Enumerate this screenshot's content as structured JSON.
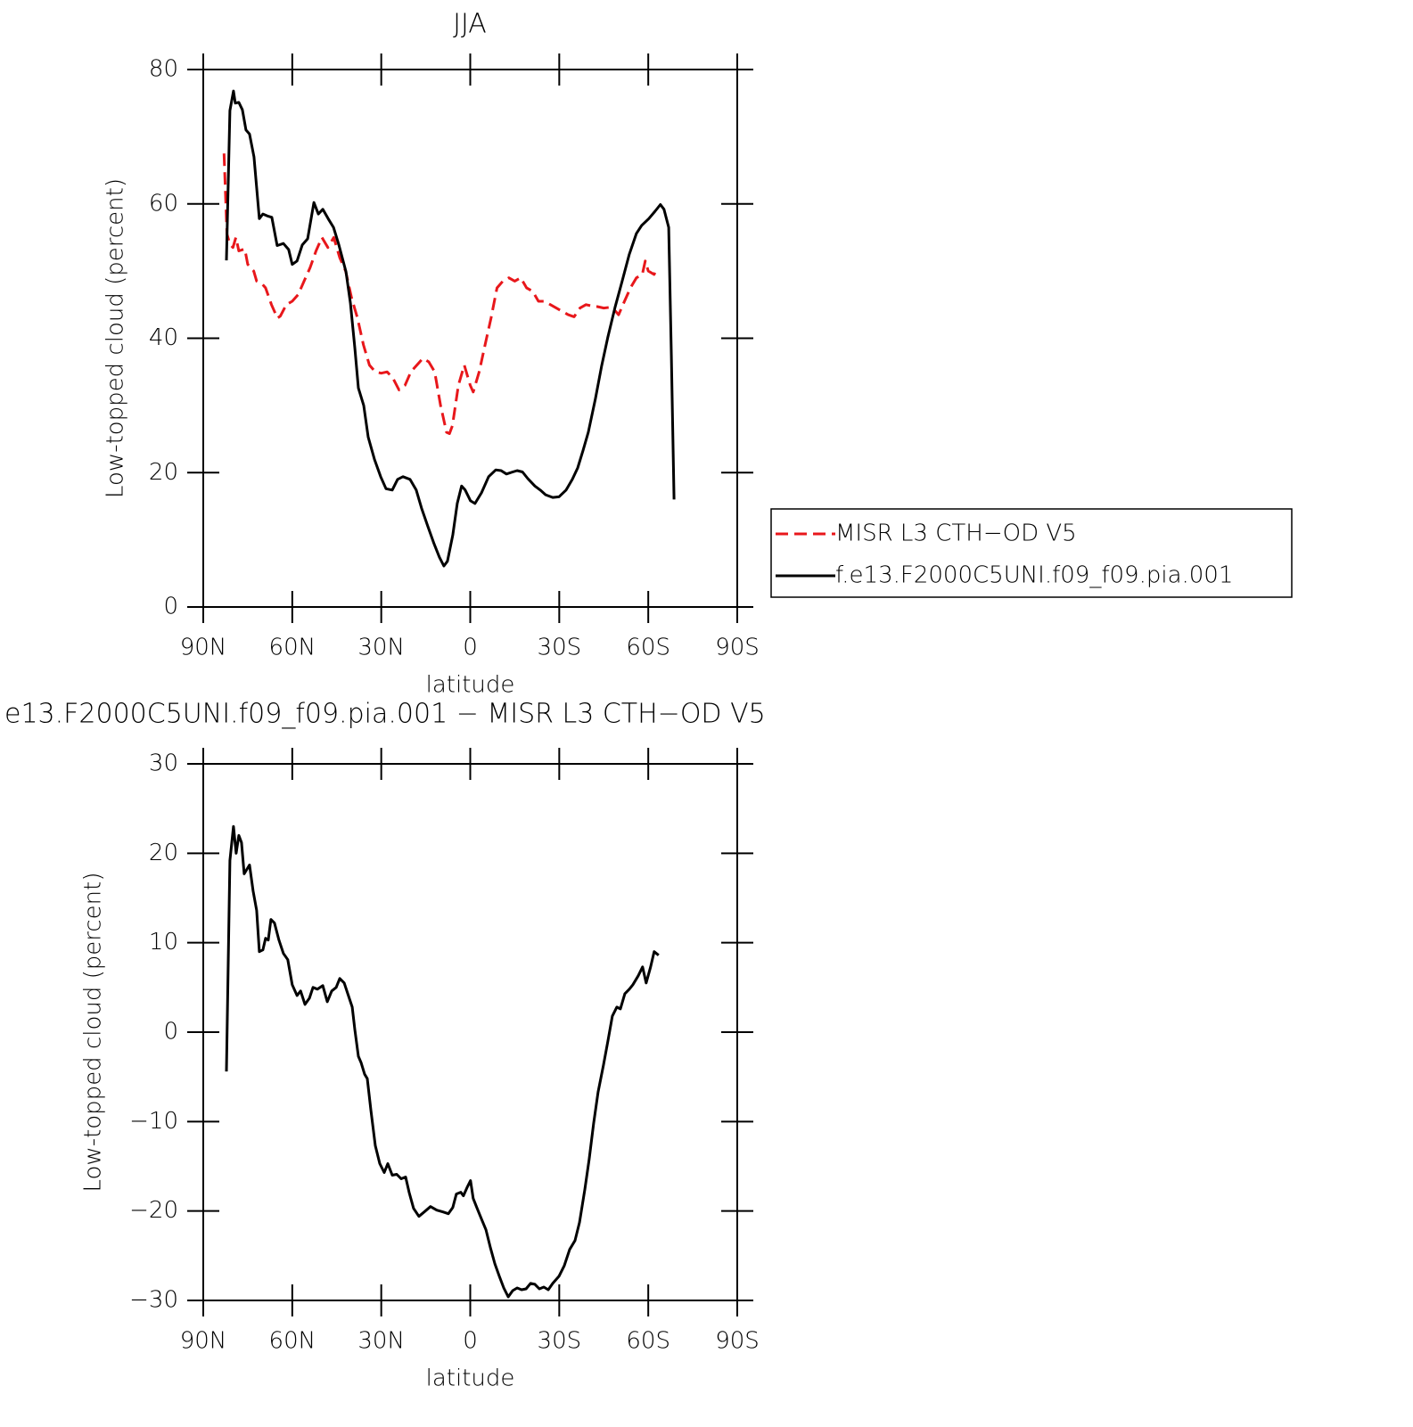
{
  "chart_data": [
    {
      "type": "line",
      "title": "JJA",
      "xlabel": "latitude",
      "ylabel": "Low-topped cloud (percent)",
      "xlim": [
        90,
        -90
      ],
      "ylim": [
        0,
        80
      ],
      "xticks": [
        {
          "value": 90,
          "label": "90N"
        },
        {
          "value": 60,
          "label": "60N"
        },
        {
          "value": 30,
          "label": "30N"
        },
        0,
        {
          "value": -30,
          "label": "30S"
        },
        {
          "value": -60,
          "label": "60S"
        },
        {
          "value": -90,
          "label": "90S"
        }
      ],
      "yticks": [
        0,
        20,
        40,
        60,
        80
      ],
      "legend": "right",
      "series": [
        {
          "name": "MISR L3 CTH−OD V5",
          "color": "#e8171b",
          "dashed": true,
          "x": [
            83,
            82,
            81,
            80,
            79,
            78,
            76,
            75,
            73,
            72,
            70,
            69,
            67,
            65,
            64,
            62,
            60,
            58,
            56,
            54,
            52,
            50,
            48,
            46,
            44,
            42,
            40,
            38,
            36,
            34,
            32,
            30,
            28,
            26,
            24,
            22,
            20,
            18,
            16,
            14,
            12,
            10,
            8,
            7,
            6,
            4,
            2,
            0,
            -1,
            -3,
            -5,
            -7,
            -9,
            -11,
            -13,
            -15,
            -17,
            -19,
            -21,
            -23,
            -25,
            -27,
            -29,
            -31,
            -33,
            -35,
            -37,
            -39,
            -41,
            -43,
            -45,
            -47,
            -49,
            -50,
            -52,
            -54,
            -56,
            -58,
            -59,
            -60,
            -62,
            -63
          ],
          "values": [
            67.5,
            55.5,
            54,
            53.5,
            55,
            53,
            53.3,
            51,
            50,
            48.5,
            48,
            47.5,
            45,
            43,
            43.3,
            45,
            45.5,
            46.5,
            48.5,
            50.5,
            53,
            55,
            53.5,
            55,
            52,
            50,
            46,
            43,
            39,
            36,
            35,
            34.8,
            35,
            34,
            32.3,
            33,
            35,
            36,
            37,
            36.5,
            35,
            30,
            26,
            25.8,
            27,
            33,
            36,
            33,
            32,
            35,
            39,
            43,
            47.5,
            48.5,
            49,
            48.5,
            49,
            47.5,
            47,
            45.5,
            45.5,
            45,
            44.5,
            44,
            43.5,
            43.2,
            44.5,
            45,
            44.8,
            44.7,
            44.5,
            44.6,
            44,
            43.5,
            45.5,
            47.5,
            49,
            49.5,
            51.5,
            50,
            49.5,
            50.5
          ]
        },
        {
          "name": "f.e13.F2000C5UNI.f09_f09.pia.001",
          "color": "#000000",
          "dashed": false,
          "x": [
            82.2,
            81.0,
            79.8,
            79.2,
            78.0,
            76.8,
            75.6,
            74.4,
            72.9,
            71.1,
            69.9,
            68.4,
            66.9,
            65.1,
            63.0,
            61.2,
            60,
            58.4,
            56.6,
            54.8,
            52.7,
            51.2,
            49.7,
            47.9,
            46.1,
            44.3,
            41.9,
            40.4,
            38.9,
            37.7,
            35.9,
            34.4,
            32.3,
            30.2,
            28.4,
            26.3,
            24.5,
            22.7,
            20.3,
            18.2,
            16.4,
            14.3,
            12.2,
            10.4,
            8.9,
            7.7,
            5.9,
            4.4,
            2.9,
            1.7,
            -0.1,
            -1.6,
            -3.8,
            -6.2,
            -8.6,
            -10.4,
            -12.2,
            -14.3,
            -15.8,
            -17.6,
            -19.4,
            -21.8,
            -23.6,
            -25.4,
            -27.8,
            -29.9,
            -32.3,
            -34.4,
            -36.2,
            -38,
            -39.8,
            -42.2,
            -44.3,
            -46.4,
            -48.8,
            -51.2,
            -53.6,
            -56,
            -57.8,
            -60.2,
            -62.3,
            -64.1,
            -65.3,
            -66.9,
            -67.8,
            -68.7
          ],
          "values": [
            51.6,
            73.9,
            76.8,
            75,
            75.1,
            74,
            71,
            70.4,
            67,
            57.8,
            58.5,
            58.2,
            58,
            53.8,
            54.1,
            53.2,
            51,
            51.5,
            53.9,
            54.8,
            60.2,
            58.5,
            59.2,
            57.8,
            56.5,
            53.9,
            49.9,
            45.2,
            38.6,
            32.6,
            30,
            25.3,
            22,
            19.4,
            17.6,
            17.4,
            19,
            19.4,
            19,
            17.4,
            14.7,
            12,
            9.4,
            7.4,
            6.1,
            6.8,
            10.7,
            15.4,
            18,
            17.4,
            15.8,
            15.4,
            17,
            19.4,
            20.4,
            20.3,
            19.8,
            20.1,
            20.3,
            20.1,
            19.1,
            18,
            17.4,
            16.7,
            16.3,
            16.4,
            17.4,
            19,
            20.7,
            23.3,
            26,
            31,
            35.9,
            40.2,
            44.6,
            48.5,
            52.5,
            55.6,
            56.8,
            57.8,
            58.9,
            59.9,
            59.2,
            56.5,
            37.3,
            16
          ]
        }
      ]
    },
    {
      "type": "line",
      "title": "e13.F2000C5UNI.f09_f09.pia.001 − MISR L3 CTH−OD V5",
      "xlabel": "latitude",
      "ylabel": "Low-topped cloud (percent)",
      "xlim": [
        90,
        -90
      ],
      "ylim": [
        -30,
        30
      ],
      "xticks": [
        {
          "value": 90,
          "label": "90N"
        },
        {
          "value": 60,
          "label": "60N"
        },
        {
          "value": 30,
          "label": "30N"
        },
        0,
        {
          "value": -30,
          "label": "30S"
        },
        {
          "value": -60,
          "label": "60S"
        },
        {
          "value": -90,
          "label": "90S"
        }
      ],
      "yticks": [
        {
          "value": -30,
          "label": "−30"
        },
        {
          "value": -20,
          "label": "−20"
        },
        {
          "value": -10,
          "label": "−10"
        },
        0,
        10,
        20,
        30
      ],
      "color": "#000000",
      "x": [
        82.2,
        81.0,
        79.8,
        78.9,
        78.0,
        77.1,
        76.2,
        74.4,
        73.2,
        72.0,
        71.1,
        69.9,
        69.0,
        68.1,
        67.2,
        66.0,
        64.5,
        63.0,
        61.5,
        60,
        58.4,
        57.2,
        55.7,
        54.2,
        53,
        51.5,
        49.7,
        48.2,
        46.7,
        45.2,
        44.0,
        42.5,
        41.3,
        39.8,
        38.9,
        37.7,
        36.8,
        35.6,
        34.7,
        33.5,
        32.0,
        30.5,
        29.0,
        27.8,
        26.3,
        24.8,
        23.3,
        21.8,
        20.6,
        19.1,
        17.3,
        15.5,
        13.4,
        11.3,
        9.2,
        7.4,
        5.9,
        4.7,
        3.2,
        2.3,
        1.1,
        -0.1,
        -1.0,
        -2.2,
        -3.8,
        -5.3,
        -6.8,
        -8.3,
        -9.8,
        -11.3,
        -12.8,
        -14.3,
        -15.8,
        -17.3,
        -18.8,
        -20.3,
        -21.8,
        -23.3,
        -24.8,
        -26.3,
        -27.8,
        -29.9,
        -31.7,
        -33.5,
        -35.3,
        -36.8,
        -38.6,
        -40.1,
        -41.6,
        -43.1,
        -44.9,
        -46.4,
        -47.9,
        -49.4,
        -50.6,
        -52.1,
        -53.6,
        -54.8,
        -56.6,
        -58.1,
        -59.3,
        -60.8,
        -62.0,
        -63.5
      ],
      "values": [
        -4.4,
        19.2,
        23,
        20,
        22,
        21.2,
        17.7,
        18.7,
        15.8,
        13.6,
        9,
        9.2,
        10.5,
        10.3,
        12.6,
        12.2,
        10.3,
        8.8,
        8.1,
        5.3,
        4.1,
        4.6,
        3.1,
        3.8,
        5,
        4.8,
        5.2,
        3.4,
        4.6,
        5,
        6,
        5.5,
        4.3,
        2.8,
        0.3,
        -2.7,
        -3.4,
        -4.7,
        -5.2,
        -8.7,
        -12.7,
        -14.7,
        -15.7,
        -14.7,
        -16,
        -15.9,
        -16.4,
        -16.2,
        -17.9,
        -19.7,
        -20.6,
        -20.1,
        -19.5,
        -19.9,
        -20.1,
        -20.3,
        -19.6,
        -18.1,
        -17.9,
        -18.3,
        -17.4,
        -16.6,
        -18.6,
        -19.6,
        -20.9,
        -22.1,
        -24.1,
        -25.9,
        -27.3,
        -28.6,
        -29.6,
        -28.9,
        -28.6,
        -28.8,
        -28.7,
        -28.1,
        -28.2,
        -28.7,
        -28.5,
        -28.8,
        -28.1,
        -27.3,
        -26.1,
        -24.3,
        -23.3,
        -21.3,
        -17.6,
        -14.2,
        -10.2,
        -6.7,
        -3.7,
        -1,
        1.8,
        2.8,
        2.6,
        4.3,
        4.8,
        5.3,
        6.3,
        7.3,
        5.5,
        7.3,
        9,
        8.6
      ]
    }
  ]
}
